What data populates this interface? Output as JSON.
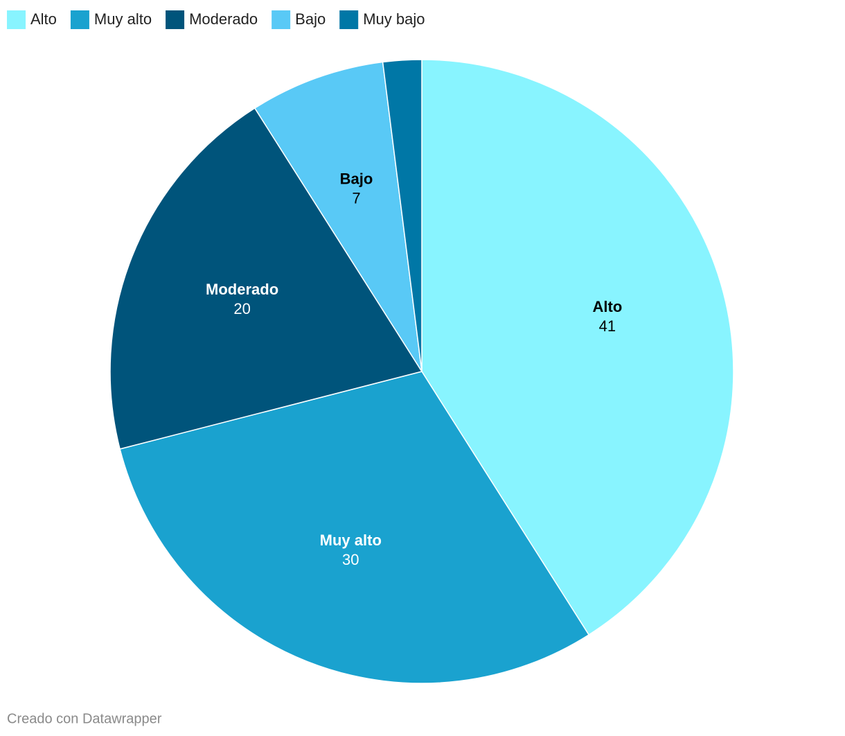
{
  "chart_data": {
    "type": "pie",
    "categories": [
      "Alto",
      "Muy alto",
      "Moderado",
      "Bajo",
      "Muy bajo"
    ],
    "values": [
      41,
      30,
      20,
      7,
      2
    ],
    "colors": [
      "#88f4ff",
      "#1aa2cf",
      "#00547b",
      "#59c9f6",
      "#0077a6"
    ],
    "show_value_labels": [
      true,
      true,
      true,
      true,
      false
    ],
    "legend": "top-left",
    "footer": "Creado con Datawrapper"
  }
}
